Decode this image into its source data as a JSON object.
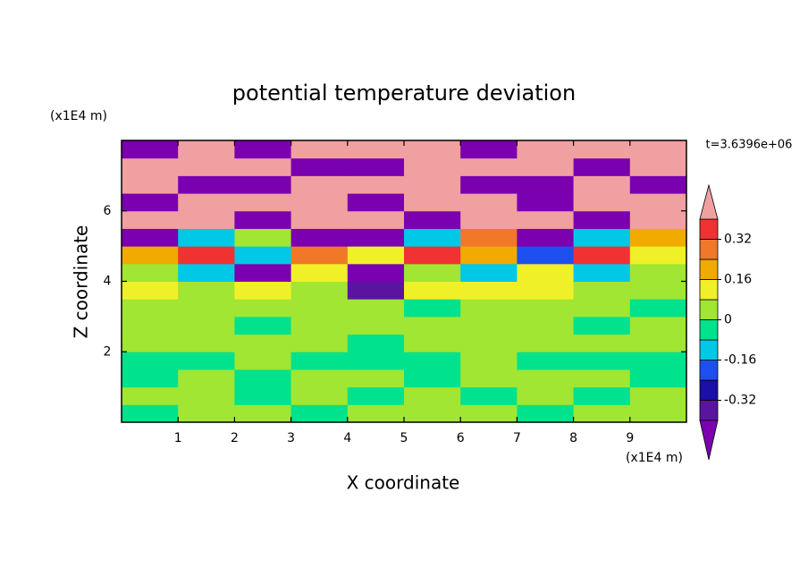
{
  "chart_data": {
    "type": "contour",
    "title": "potential temperature deviation",
    "x_label": "X coordinate",
    "y_label": "Z coordinate",
    "x_unit": "(x1E4 m)",
    "y_unit": "(x1E4 m)",
    "time_label": "t=3.6396e+06",
    "xlim": [
      0,
      10
    ],
    "ylim": [
      0,
      8
    ],
    "xticks": [
      1,
      2,
      3,
      4,
      5,
      6,
      7,
      8,
      9
    ],
    "yticks": [
      2,
      4,
      6
    ],
    "x": [
      0.5,
      1.5,
      2.5,
      3.5,
      4.5,
      5.5,
      6.5,
      7.5,
      8.5,
      9.5
    ],
    "y": [
      0.25,
      0.75,
      1.25,
      1.75,
      2.25,
      2.75,
      3.25,
      3.75,
      4.25,
      4.75,
      5.25,
      5.75,
      6.25,
      6.75,
      7.25,
      7.75
    ],
    "z": [
      [
        -0.04,
        0.04,
        0.04,
        -0.04,
        0.04,
        0.04,
        0.04,
        -0.04,
        0.04,
        0.04
      ],
      [
        0.04,
        0.04,
        -0.04,
        0.04,
        -0.04,
        0.04,
        -0.04,
        0.04,
        -0.04,
        0.04
      ],
      [
        -0.04,
        0.04,
        -0.04,
        0.04,
        0.04,
        -0.04,
        0.04,
        0.04,
        0.04,
        -0.04
      ],
      [
        -0.04,
        -0.04,
        0.04,
        -0.04,
        -0.04,
        -0.04,
        0.04,
        -0.04,
        -0.04,
        -0.04
      ],
      [
        0.04,
        0.04,
        0.04,
        0.04,
        -0.04,
        0.04,
        0.04,
        0.04,
        0.04,
        0.04
      ],
      [
        0.04,
        0.04,
        -0.04,
        0.04,
        0.04,
        0.04,
        0.04,
        0.04,
        -0.04,
        0.04
      ],
      [
        0.04,
        0.04,
        0.04,
        0.04,
        0.04,
        -0.04,
        0.04,
        0.04,
        0.04,
        -0.04
      ],
      [
        0.12,
        0.04,
        0.12,
        0.04,
        -0.36,
        0.12,
        0.12,
        0.12,
        0.04,
        0.04
      ],
      [
        0.04,
        -0.12,
        -0.44,
        0.12,
        -0.44,
        0.04,
        -0.12,
        0.12,
        -0.12,
        0.04
      ],
      [
        0.2,
        0.36,
        -0.12,
        0.28,
        0.12,
        0.36,
        0.2,
        -0.2,
        0.36,
        0.12
      ],
      [
        -0.44,
        -0.12,
        0.04,
        -0.44,
        -0.44,
        -0.12,
        0.28,
        -0.44,
        -0.12,
        0.2
      ],
      [
        0.44,
        0.44,
        -0.44,
        0.44,
        0.44,
        -0.44,
        0.44,
        0.44,
        -0.44,
        0.44
      ],
      [
        -0.44,
        0.44,
        0.44,
        0.44,
        -0.44,
        0.44,
        0.44,
        -0.44,
        0.44,
        0.44
      ],
      [
        0.44,
        -0.44,
        -0.44,
        0.44,
        0.44,
        0.44,
        -0.44,
        -0.44,
        0.44,
        -0.44
      ],
      [
        0.44,
        0.44,
        0.44,
        -0.44,
        -0.44,
        0.44,
        0.44,
        0.44,
        -0.44,
        0.44
      ],
      [
        -0.44,
        0.44,
        -0.44,
        0.44,
        0.44,
        0.44,
        -0.44,
        0.44,
        0.44,
        0.44
      ]
    ],
    "colorbar": {
      "levels": [
        -0.4,
        -0.32,
        -0.24,
        -0.16,
        -0.08,
        0,
        0.08,
        0.16,
        0.24,
        0.32,
        0.4
      ],
      "colors": [
        "#7a00b0",
        "#5a14a0",
        "#1a0fa8",
        "#1e50f0",
        "#00c8e6",
        "#00e28c",
        "#a0e632",
        "#f0f028",
        "#f0aa00",
        "#f07828",
        "#f03232",
        "#f0a0a0"
      ],
      "ticks": [
        -0.32,
        -0.16,
        0,
        0.16,
        0.32
      ]
    }
  }
}
